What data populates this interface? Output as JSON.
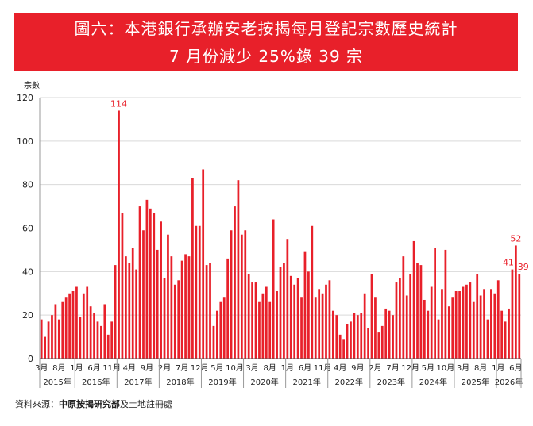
{
  "header": {
    "title": "圖六：本港銀行承辦安老按揭每月登記宗數歷史統計",
    "subtitle": "7 月份減少 25%錄 39 宗"
  },
  "source": {
    "prefix": "資料來源：",
    "bold": "中原按揭研究部",
    "suffix": "及土地註冊處"
  },
  "colors": {
    "banner": "#e8202a",
    "bar": "#e8202a",
    "label": "#e8202a",
    "grid": "#d9d9d9",
    "axis": "#999999"
  },
  "chart_data": {
    "type": "bar",
    "ylabel": "宗數",
    "ylim": [
      0,
      120
    ],
    "yticks": [
      0,
      20,
      40,
      60,
      80,
      100,
      120
    ],
    "grid": true,
    "start": "2015-03",
    "values": [
      18,
      10,
      17,
      20,
      25,
      18,
      26,
      28,
      30,
      31,
      33,
      19,
      30,
      33,
      24,
      21,
      17,
      15,
      25,
      11,
      17,
      43,
      114,
      67,
      47,
      44,
      51,
      41,
      70,
      59,
      73,
      69,
      67,
      50,
      63,
      37,
      57,
      47,
      34,
      36,
      45,
      48,
      47,
      83,
      61,
      61,
      87,
      43,
      44,
      15,
      22,
      26,
      28,
      46,
      59,
      70,
      82,
      57,
      59,
      39,
      35,
      35,
      26,
      30,
      33,
      26,
      64,
      31,
      42,
      44,
      55,
      38,
      34,
      37,
      28,
      49,
      40,
      61,
      28,
      32,
      30,
      34,
      36,
      22,
      20,
      11,
      9,
      16,
      17,
      21,
      20,
      21,
      30,
      14,
      39,
      28,
      12,
      15,
      23,
      22,
      20,
      35,
      37,
      47,
      29,
      39,
      54,
      44,
      43,
      27,
      22,
      33,
      51,
      18,
      32,
      50,
      24,
      28,
      31,
      31,
      33,
      34,
      35,
      26,
      39,
      29,
      32,
      18,
      32,
      30,
      36,
      22,
      17,
      23,
      41,
      52,
      39
    ],
    "data_labels": [
      {
        "index": 22,
        "text": "114"
      },
      {
        "index": 134,
        "text": "41"
      },
      {
        "index": 135,
        "text": "52"
      },
      {
        "index": 136,
        "text": "39"
      }
    ],
    "month_ticks": [
      "3月",
      "8月",
      "1月",
      "6月",
      "11月",
      "4月",
      "9月",
      "2月",
      "7月",
      "12月",
      "5月",
      "10月",
      "3月",
      "8月",
      "1月",
      "6月",
      "11月",
      "4月",
      "9月",
      "2月",
      "7月",
      "12月",
      "5月",
      "10月",
      "3月",
      "8月",
      "1月",
      "6月"
    ],
    "years": [
      "2015年",
      "2016年",
      "2017年",
      "2018年",
      "2019年",
      "2020年",
      "2021年",
      "2022年",
      "2023年",
      "2024年",
      "2025年",
      "2026年"
    ]
  }
}
